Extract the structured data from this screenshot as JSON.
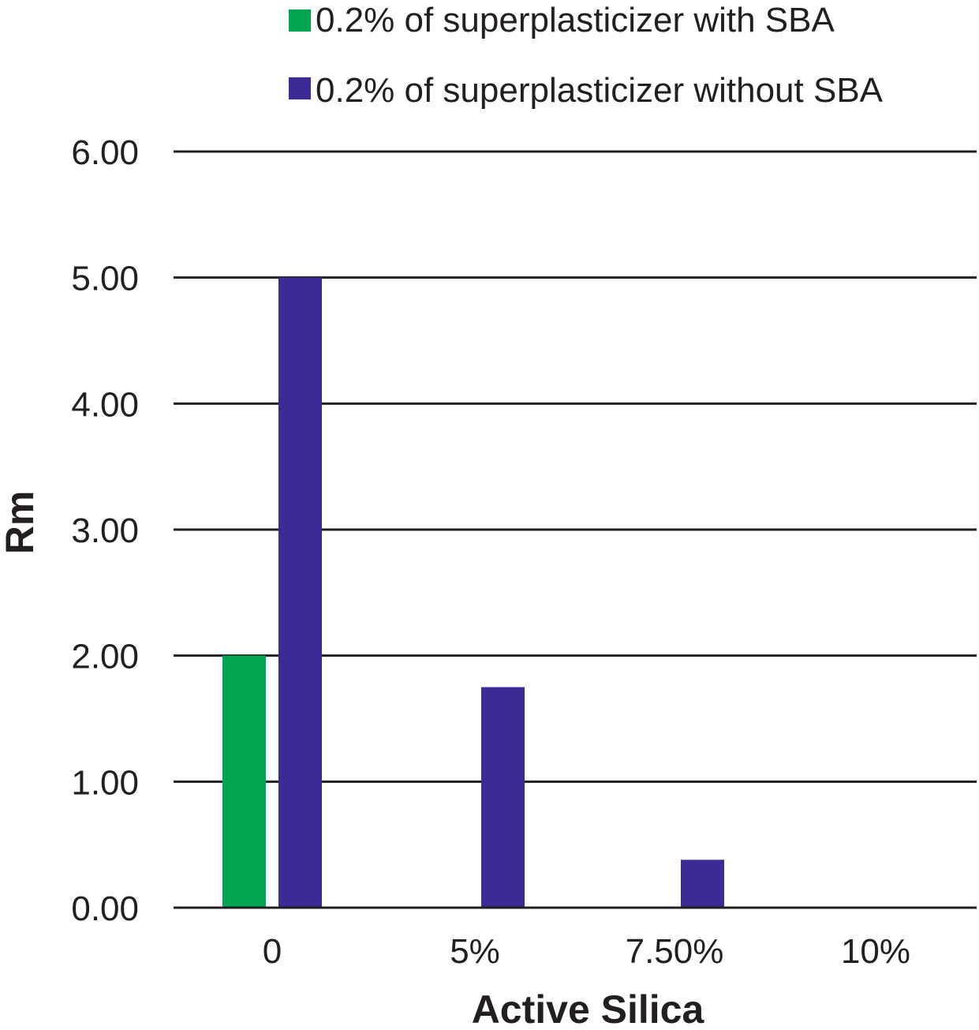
{
  "chart_data": {
    "type": "bar",
    "title": "",
    "xlabel": "Active Silica",
    "ylabel": "Rm",
    "categories": [
      "0",
      "5%",
      "7.50%",
      "10%"
    ],
    "series": [
      {
        "name": "0.2% of superplasticizer with SBA",
        "color": "#00a551",
        "values": [
          2.0,
          0,
          0,
          0
        ]
      },
      {
        "name": "0.2% of superplasticizer without SBA",
        "color": "#3b2b96",
        "values": [
          5.0,
          1.75,
          0.38,
          0
        ]
      }
    ],
    "ylim": [
      0,
      6
    ],
    "yticks": [
      "0.00",
      "1.00",
      "2.00",
      "3.00",
      "4.00",
      "5.00",
      "6.00"
    ],
    "grid": true,
    "legend_position": "top"
  }
}
